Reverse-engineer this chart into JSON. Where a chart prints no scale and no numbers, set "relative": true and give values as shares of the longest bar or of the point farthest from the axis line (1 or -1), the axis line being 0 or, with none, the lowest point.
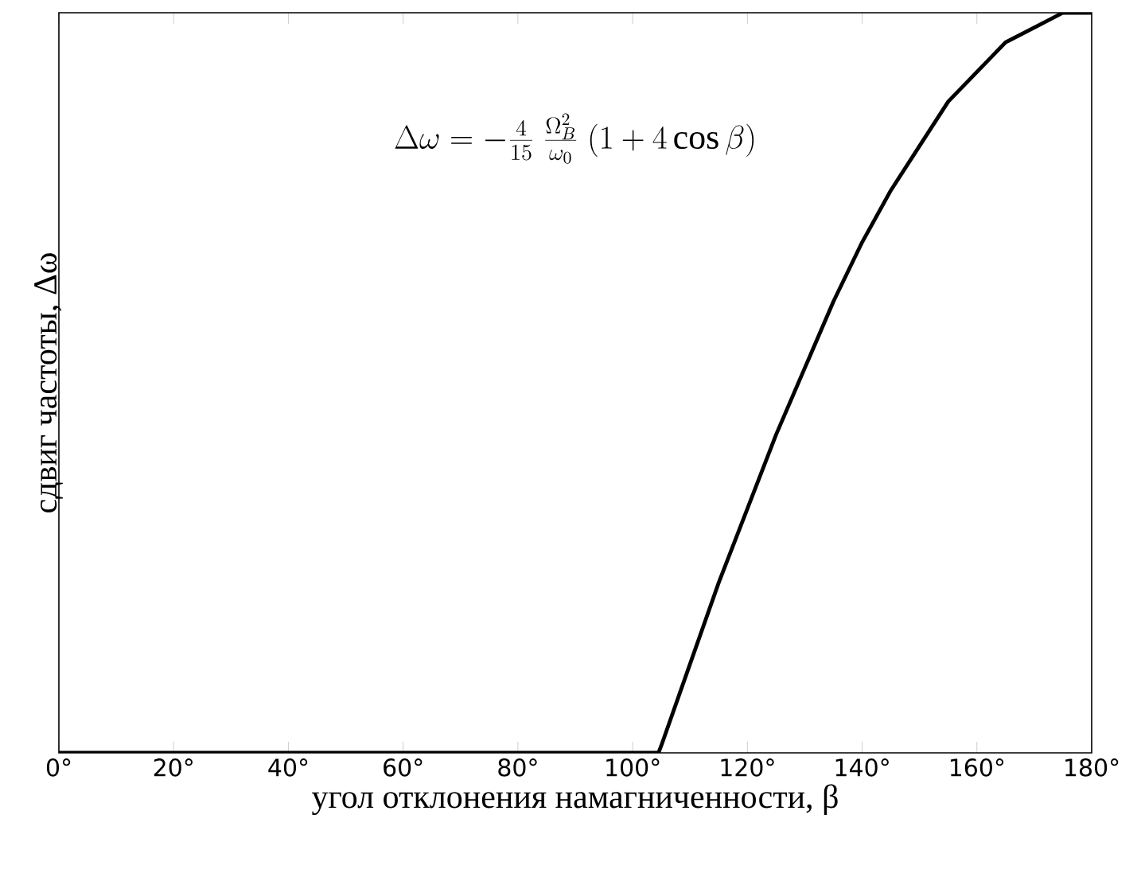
{
  "chart_data": {
    "type": "line",
    "relative": true,
    "xlabel": "угол отклонения намагниченности, β",
    "ylabel": "сдвиг частоты, Δω",
    "annotations": [
      "\\Delta\\omega = -\\frac{4}{15}\\;\\frac{\\Omega_B^2}{\\omega_0}\\;(1 + 4\\cos\\beta)"
    ],
    "x": [
      0,
      104.5,
      105,
      110,
      115,
      120,
      125,
      130,
      135,
      140,
      145,
      150,
      155,
      160,
      165,
      170,
      175,
      180
    ],
    "values": [
      0,
      0,
      0.01,
      0.12,
      0.23,
      0.33,
      0.43,
      0.52,
      0.61,
      0.69,
      0.76,
      0.82,
      0.88,
      0.92,
      0.96,
      0.98,
      1.0,
      1.0
    ],
    "color": "#000000",
    "line_style": "solid",
    "marker": "none",
    "xlim": [
      0,
      180
    ],
    "xticks": [
      {
        "value": 0,
        "label": "0°"
      },
      {
        "value": 20,
        "label": "20°"
      },
      {
        "value": 40,
        "label": "40°"
      },
      {
        "value": 60,
        "label": "60°"
      },
      {
        "value": 80,
        "label": "80°"
      },
      {
        "value": 100,
        "label": "100°"
      },
      {
        "value": 120,
        "label": "120°"
      },
      {
        "value": 140,
        "label": "140°"
      },
      {
        "value": 160,
        "label": "160°"
      },
      {
        "value": 180,
        "label": "180°"
      }
    ]
  }
}
